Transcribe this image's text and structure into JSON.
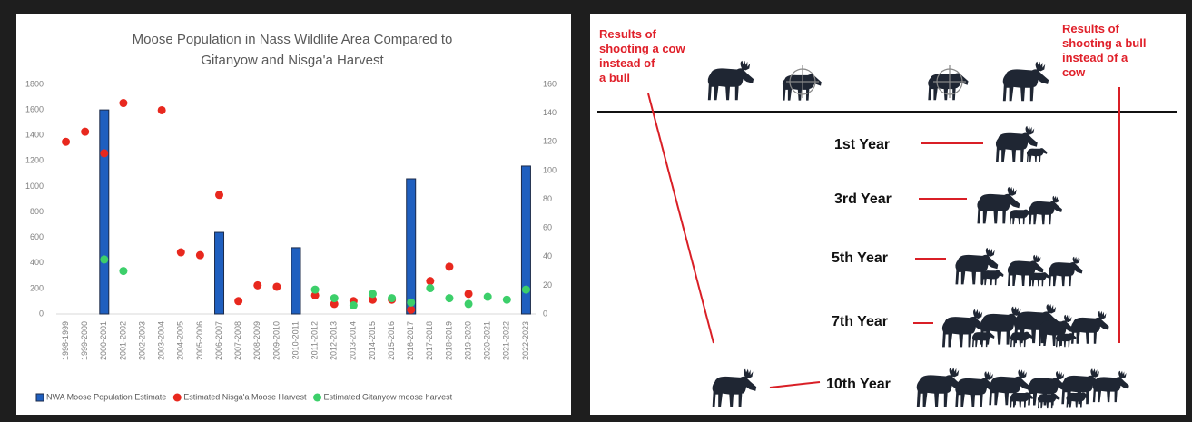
{
  "chart_data": {
    "type": "bar",
    "title_lines": [
      "Moose Population in Nass Wildlife Area Compared to",
      "Gitanyow and Nisga'a Harvest"
    ],
    "categories": [
      "1998-1999",
      "1999-2000",
      "2000-2001",
      "2001-2002",
      "2002-2003",
      "2003-2004",
      "2004-2005",
      "2005-2006",
      "2006-2007",
      "2007-2008",
      "2008-2009",
      "2009-2010",
      "2010-2011",
      "2011-2012",
      "2012-2013",
      "2013-2014",
      "2014-2015",
      "2015-2016",
      "2016-2017",
      "2017-2018",
      "2018-2019",
      "2019-2020",
      "2020-2021",
      "2021-2022",
      "2022-2023"
    ],
    "series": [
      {
        "name": "NWA Moose Population Estimate",
        "type": "bar",
        "color": "#1f5fbf",
        "values": [
          null,
          null,
          1600,
          null,
          null,
          null,
          null,
          null,
          640,
          null,
          null,
          null,
          520,
          null,
          null,
          null,
          null,
          null,
          1060,
          null,
          null,
          null,
          null,
          null,
          1160
        ]
      },
      {
        "name": "Estimated Nisga'a Moose Harvest",
        "type": "scatter",
        "axis": "y2",
        "color": "#e8281e",
        "values": [
          120,
          127,
          112,
          147,
          null,
          142,
          43,
          41,
          83,
          9,
          20,
          19,
          null,
          13,
          7,
          9,
          10,
          10,
          3,
          23,
          33,
          14,
          null,
          null,
          null
        ]
      },
      {
        "name": "Estimated Gitanyow moose harvest",
        "type": "scatter",
        "axis": "y2",
        "color": "#3ccf6a",
        "values": [
          null,
          null,
          38,
          30,
          null,
          null,
          null,
          null,
          null,
          null,
          null,
          null,
          null,
          17,
          11,
          6,
          14,
          11,
          8,
          18,
          11,
          7,
          12,
          10,
          17
        ]
      }
    ],
    "ylim": [
      0,
      1800
    ],
    "yticks": [
      0,
      200,
      400,
      600,
      800,
      1000,
      1200,
      1400,
      1600,
      1800
    ],
    "y2lim": [
      0,
      160
    ],
    "y2ticks": [
      0,
      20,
      40,
      60,
      80,
      100,
      120,
      140,
      160
    ],
    "grid": false,
    "legend": "bottom"
  },
  "diagram": {
    "left_note": [
      "Results of",
      "shooting a cow",
      "instead of",
      "a bull"
    ],
    "right_note": [
      "Results of",
      "shooting a bull",
      "instead of a",
      "cow"
    ],
    "years": [
      "1st Year",
      "3rd Year",
      "5th Year",
      "7th Year",
      "10th Year"
    ]
  }
}
